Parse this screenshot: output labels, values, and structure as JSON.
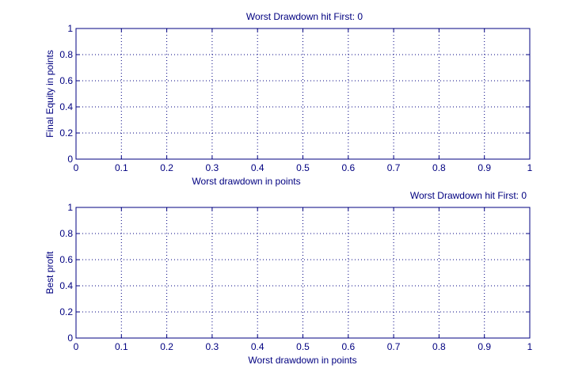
{
  "figure": {
    "background": "#ffffff",
    "axis_color": "#000080",
    "grid_color": "#000080"
  },
  "chart_data": [
    {
      "type": "scatter",
      "title": "Worst Drawdown hit First: 0",
      "title_position": "center",
      "xlabel": "Worst drawdown in points",
      "ylabel": "Final Equity in points",
      "xlim": [
        0,
        1
      ],
      "ylim": [
        0,
        1
      ],
      "xticks": [
        0,
        0.1,
        0.2,
        0.3,
        0.4,
        0.5,
        0.6,
        0.7,
        0.8,
        0.9,
        1
      ],
      "xtick_labels": [
        "0",
        "0.1",
        "0.2",
        "0.3",
        "0.4",
        "0.5",
        "0.6",
        "0.7",
        "0.8",
        "0.9",
        "1"
      ],
      "yticks": [
        0,
        0.2,
        0.4,
        0.6,
        0.8,
        1
      ],
      "ytick_labels": [
        "0",
        "0.2",
        "0.4",
        "0.6",
        "0.8",
        "1"
      ],
      "grid": true,
      "series": [
        {
          "x": [],
          "y": []
        }
      ]
    },
    {
      "type": "scatter",
      "title": "Worst Drawdown hit First: 0",
      "title_position": "right",
      "xlabel": "Worst drawdown in points",
      "ylabel": "Best profit",
      "xlim": [
        0,
        1
      ],
      "ylim": [
        0,
        1
      ],
      "xticks": [
        0,
        0.1,
        0.2,
        0.3,
        0.4,
        0.5,
        0.6,
        0.7,
        0.8,
        0.9,
        1
      ],
      "xtick_labels": [
        "0",
        "0.1",
        "0.2",
        "0.3",
        "0.4",
        "0.5",
        "0.6",
        "0.7",
        "0.8",
        "0.9",
        "1"
      ],
      "yticks": [
        0,
        0.2,
        0.4,
        0.6,
        0.8,
        1
      ],
      "ytick_labels": [
        "0",
        "0.2",
        "0.4",
        "0.6",
        "0.8",
        "1"
      ],
      "grid": true,
      "series": [
        {
          "x": [],
          "y": []
        }
      ]
    }
  ]
}
